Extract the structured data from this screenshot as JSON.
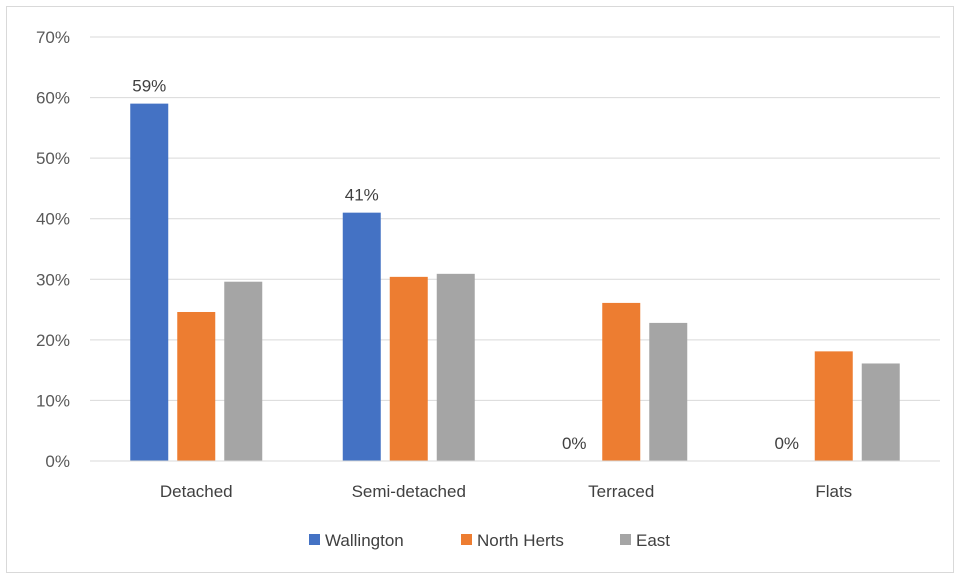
{
  "chart_data": {
    "type": "bar",
    "categories": [
      "Detached",
      "Semi-detached",
      "Terraced",
      "Flats"
    ],
    "series": [
      {
        "name": "Wallington",
        "color": "#4472C4",
        "values": [
          59,
          41,
          0,
          0
        ],
        "labels": [
          "59%",
          "41%",
          "0%",
          "0%"
        ]
      },
      {
        "name": "North Herts",
        "color": "#ED7D31",
        "values": [
          24.6,
          30.4,
          26.1,
          18.1
        ]
      },
      {
        "name": "East",
        "color": "#A5A5A5",
        "values": [
          29.6,
          30.9,
          22.8,
          16.1
        ]
      }
    ],
    "ylim": [
      0,
      70
    ],
    "yticks": [
      "0%",
      "10%",
      "20%",
      "30%",
      "40%",
      "50%",
      "60%",
      "70%"
    ],
    "grid": true,
    "legend_position": "bottom"
  }
}
